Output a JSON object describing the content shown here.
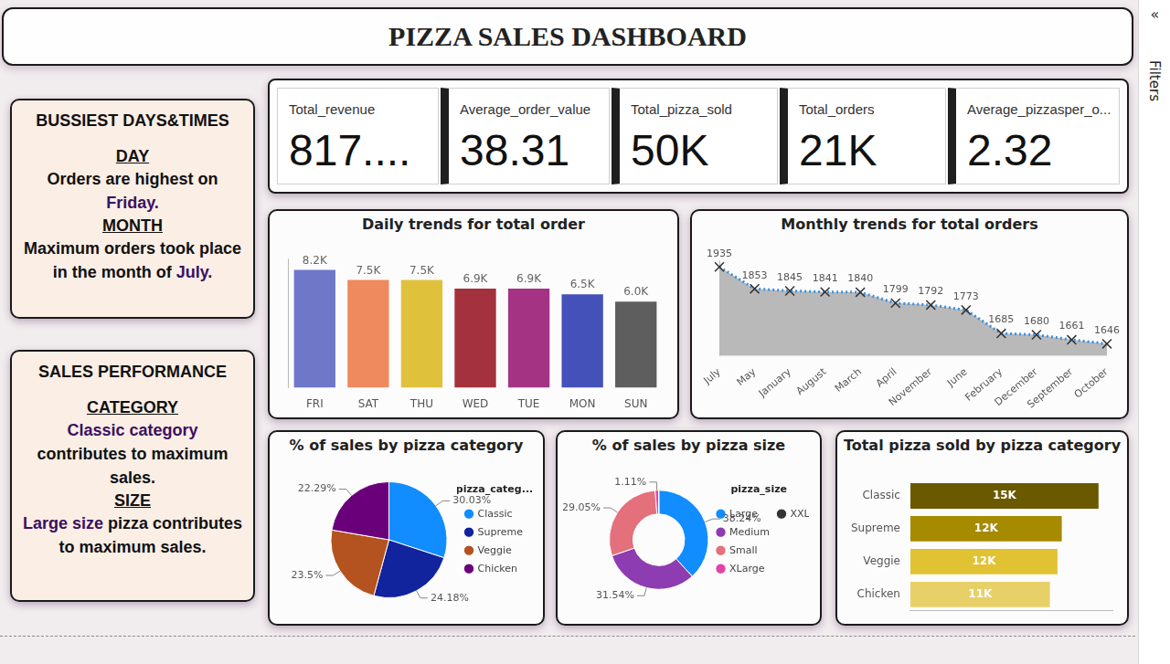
{
  "title": "PIZZA SALES DASHBOARD",
  "sidebar": {
    "collapse": "«",
    "label": "Filters"
  },
  "panels": [
    {
      "heading": "BUSSIEST DAYS&TIMES",
      "sections": [
        {
          "label": "DAY",
          "before": "Orders are highest on",
          "highlight": "Friday."
        },
        {
          "label": "MONTH",
          "before": "Maximum orders took place in the month of",
          "highlight": "July."
        }
      ]
    },
    {
      "heading": "SALES PERFORMANCE",
      "sections": [
        {
          "label": "CATEGORY",
          "highlight": "Classic category",
          "after": "contributes to maximum sales."
        },
        {
          "label": "SIZE",
          "highlight": "Large size",
          "after": "pizza contributes to maximum sales."
        }
      ]
    }
  ],
  "kpis": [
    {
      "label": "Total_revenue",
      "value": "817...."
    },
    {
      "label": "Average_order_value",
      "value": "38.31"
    },
    {
      "label": "Total_pizza_sold",
      "value": "50K"
    },
    {
      "label": "Total_orders",
      "value": "21K"
    },
    {
      "label": "Average_pizzasper_o...",
      "value": "2.32"
    }
  ],
  "chart_data": [
    {
      "type": "bar",
      "title": "Daily trends for total order",
      "categories": [
        "FRI",
        "SAT",
        "THU",
        "WED",
        "TUE",
        "MON",
        "SUN"
      ],
      "values": [
        8200,
        7500,
        7500,
        6900,
        6900,
        6500,
        6000
      ],
      "value_labels": [
        "8.2K",
        "7.5K",
        "7.5K",
        "6.9K",
        "6.9K",
        "6.5K",
        "6.0K"
      ],
      "colors": [
        "#6f77c9",
        "#ef8a5e",
        "#e0c13c",
        "#a3313e",
        "#a43384",
        "#4451b8",
        "#5e5e5e"
      ],
      "ylim": [
        0,
        9000
      ],
      "grid": false,
      "data_labels": true,
      "tick_labels": "x"
    },
    {
      "type": "area",
      "title": "Monthly trends for total orders",
      "categories": [
        "July",
        "May",
        "January",
        "August",
        "March",
        "April",
        "November",
        "June",
        "February",
        "December",
        "September",
        "October"
      ],
      "values": [
        1935,
        1853,
        1845,
        1841,
        1840,
        1799,
        1792,
        1773,
        1685,
        1680,
        1661,
        1646
      ],
      "color": "#3a8fe0",
      "marker": "x",
      "line_style": "dotted",
      "ylim": [
        1600,
        1960
      ],
      "grid": false,
      "data_labels": true,
      "tick_labels": "x"
    },
    {
      "type": "pie",
      "title": "% of sales by pizza category",
      "categories": [
        "Classic",
        "Supreme",
        "Veggie",
        "Chicken"
      ],
      "values": [
        30.03,
        24.18,
        23.5,
        22.29
      ],
      "value_labels": [
        "30.03%",
        "24.18%",
        "23.5%",
        "22.29%"
      ],
      "colors": [
        "#118dff",
        "#12239e",
        "#b4531f",
        "#6b007b"
      ],
      "legend": "right",
      "legend_title": "pizza_categ...",
      "data_labels": true
    },
    {
      "type": "doughnut",
      "title": "% of sales by pizza size",
      "categories": [
        "Large",
        "Medium",
        "Small",
        "XLarge",
        "XXLarge"
      ],
      "values": [
        38.24,
        31.54,
        29.05,
        1.11,
        0.06
      ],
      "value_labels": [
        "38.24%",
        "31.54%",
        "29.05%",
        "1.11%",
        null
      ],
      "colors": [
        "#118dff",
        "#8d3cb1",
        "#e3707b",
        "#e044a7",
        "#333333"
      ],
      "legend": "right",
      "legend_title": "pizza_size",
      "data_labels": true
    },
    {
      "type": "bar",
      "orientation": "horizontal",
      "title": "Total pizza sold by pizza category",
      "categories": [
        "Classic",
        "Supreme",
        "Veggie",
        "Chicken"
      ],
      "values": [
        14900,
        11990,
        11650,
        11050
      ],
      "value_labels": [
        "15K",
        "12K",
        "12K",
        "11K"
      ],
      "colors": [
        "#6b5900",
        "#a68a00",
        "#e1c233",
        "#e8d068"
      ],
      "xlim": [
        0,
        16000
      ],
      "grid": false,
      "data_labels": true,
      "tick_labels": "y"
    }
  ]
}
